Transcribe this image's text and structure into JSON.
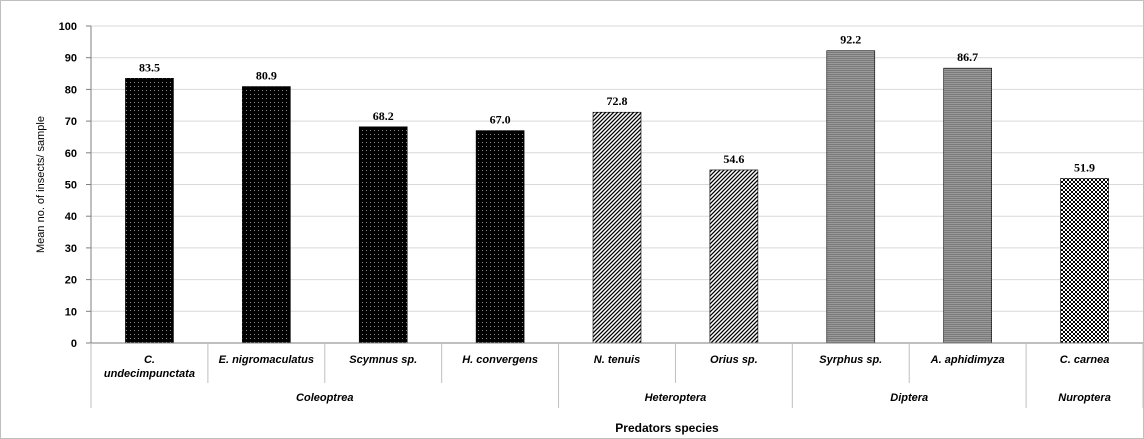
{
  "chart_data": {
    "type": "bar",
    "categories": [
      "C. undecimpunctata",
      "E. nigromaculatus",
      "Scymnus sp.",
      "H. convergens",
      "N. tenuis",
      "Orius sp.",
      "Syrphus sp.",
      "A. aphidimyza",
      "C. carnea"
    ],
    "category_lines": [
      [
        "C.",
        "undecimpunctata"
      ],
      [
        "E. nigromaculatus"
      ],
      [
        "Scymnus sp."
      ],
      [
        "H. convergens"
      ],
      [
        "N. tenuis"
      ],
      [
        "Orius sp."
      ],
      [
        "Syrphus sp."
      ],
      [
        "A. aphidimyza"
      ],
      [
        "C. carnea"
      ]
    ],
    "values": [
      83.5,
      80.9,
      68.2,
      67.0,
      72.8,
      54.6,
      92.2,
      86.7,
      51.9
    ],
    "value_labels": [
      "83.5",
      "80.9",
      "68.2",
      "67.0",
      "72.8",
      "54.6",
      "92.2",
      "86.7",
      "51.9"
    ],
    "groups": [
      {
        "name": "Coleoptrea",
        "start": 0,
        "end": 3,
        "pattern": "dots"
      },
      {
        "name": "Heteroptera",
        "start": 4,
        "end": 5,
        "pattern": "diagonal"
      },
      {
        "name": "Diptera",
        "start": 6,
        "end": 7,
        "pattern": "horizontal"
      },
      {
        "name": "Nuroptera",
        "start": 8,
        "end": 8,
        "pattern": "checker"
      }
    ],
    "xlabel": "Predators species",
    "ylabel": "Mean no. of insects/ sample",
    "ylim": [
      0,
      100
    ],
    "yticks": [
      0,
      10,
      20,
      30,
      40,
      50,
      60,
      70,
      80,
      90,
      100
    ],
    "grid": true,
    "legend": "none"
  }
}
